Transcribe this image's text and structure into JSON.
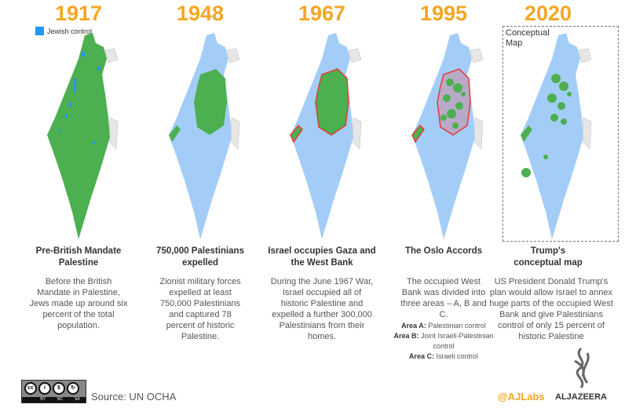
{
  "legend": {
    "label": "Jewish control",
    "color": "#2196f3"
  },
  "colors": {
    "palestinian": "#4caf50",
    "israeli": "#a3cdf7",
    "jewish": "#2196f3",
    "outline": "#e53935",
    "year": "#f5a623",
    "neighbor": "#e6e6e6"
  },
  "panels": [
    {
      "year": "1917",
      "title": "Pre-British Mandate Palestine",
      "description": "Before the British Mandate in Palestine, Jews made up around six percent of the total population."
    },
    {
      "year": "1948",
      "title": "750,000 Palestinians expelled",
      "description": "Zionist military forces expelled at least 750,000 Palestinians and captured 78 percent of historic Palestine."
    },
    {
      "year": "1967",
      "title": "Israel occupies Gaza and the West Bank",
      "description": "During the June 1967 War, Israel occupied all of historic Palestine and expelled a further 300,000 Palestinians from their homes."
    },
    {
      "year": "1995",
      "title": "The Oslo Accords",
      "description": "The occupied West Bank was divided into three areas – A, B and C.",
      "areas": [
        {
          "label": "Area A:",
          "text": "Palestinian control"
        },
        {
          "label": "Area B:",
          "text": "Joint Israeli-Palestinian control"
        },
        {
          "label": "Area C:",
          "text": "Israeli control"
        }
      ]
    },
    {
      "year": "2020",
      "title": "Trump's conceptual map",
      "description": "US President Donald Trump's plan would allow Israel to annex huge parts of the occupied West Bank and give Palestinians control of only 15 percent of historic Palestine",
      "box_label": "Conceptual Map"
    }
  ],
  "footer": {
    "license": "CC BY NC SA",
    "license_parts": [
      "BY",
      "NC",
      "SA"
    ],
    "source": "Source: UN OCHA",
    "handle": "@AJLabs",
    "brand": "ALJAZEERA"
  }
}
